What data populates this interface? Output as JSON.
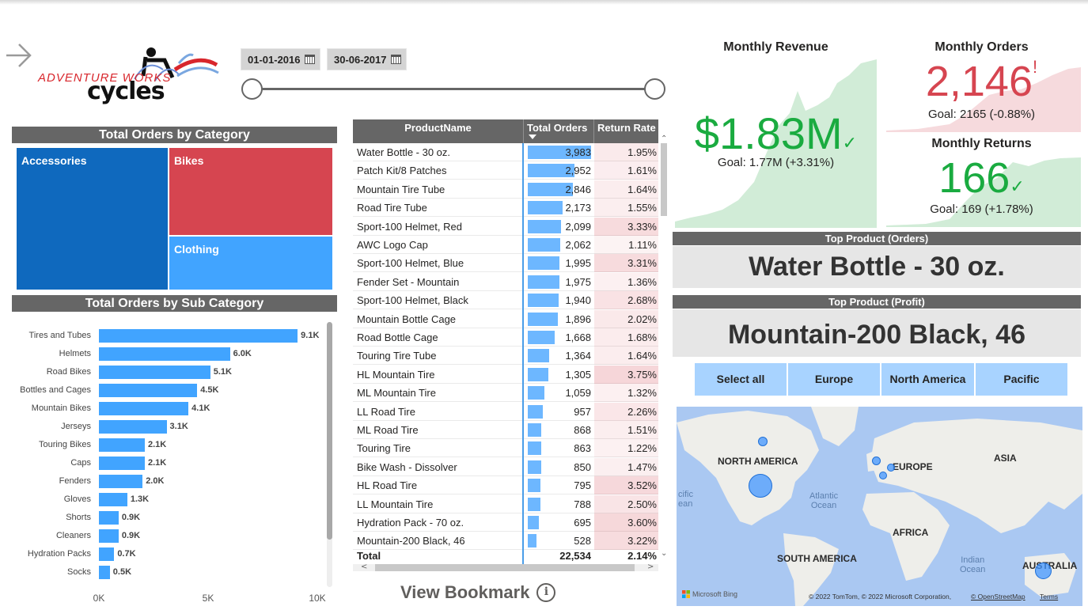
{
  "header": {
    "logo_line1": "ADVENTURE WORKS",
    "logo_line2": "cycles",
    "date_start": "01-01-2016",
    "date_end": "30-06-2017",
    "date_range_fraction": [
      0,
      1
    ]
  },
  "category_treemap": {
    "title": "Total Orders by Category",
    "items": [
      {
        "label": "Accessories",
        "color": "#0f69be"
      },
      {
        "label": "Bikes",
        "color": "#d64550"
      },
      {
        "label": "Clothing",
        "color": "#41a4ff"
      }
    ]
  },
  "chart_data": {
    "type": "bar",
    "orientation": "horizontal",
    "title": "Total Orders by Sub Category",
    "categories": [
      "Tires and Tubes",
      "Helmets",
      "Road Bikes",
      "Bottles and Cages",
      "Mountain Bikes",
      "Jerseys",
      "Touring Bikes",
      "Caps",
      "Fenders",
      "Gloves",
      "Shorts",
      "Cleaners",
      "Hydration Packs",
      "Socks"
    ],
    "values": [
      9100,
      6000,
      5100,
      4500,
      4100,
      3100,
      2100,
      2100,
      2000,
      1300,
      900,
      900,
      700,
      500
    ],
    "data_labels": [
      "9.1K",
      "6.0K",
      "5.1K",
      "4.5K",
      "4.1K",
      "3.1K",
      "2.1K",
      "2.1K",
      "2.0K",
      "1.3K",
      "0.9K",
      "0.9K",
      "0.7K",
      "0.5K"
    ],
    "xlim": [
      0,
      10000
    ],
    "x_ticks": [
      "0K",
      "5K",
      "10K"
    ],
    "xlabel": "",
    "ylabel": "",
    "color": "#41a4ff",
    "grid": false
  },
  "product_table": {
    "columns": [
      "ProductName",
      "Total Orders",
      "Return Rate"
    ],
    "sorted_by": "Total Orders",
    "max_orders": 3983,
    "rows": [
      {
        "name": "Water Bottle - 30 oz.",
        "orders": "3,983",
        "orders_value": 3983,
        "return_rate": "1.95%",
        "rr_value": 1.95
      },
      {
        "name": "Patch Kit/8 Patches",
        "orders": "2,952",
        "orders_value": 2952,
        "return_rate": "1.61%",
        "rr_value": 1.61
      },
      {
        "name": "Mountain Tire Tube",
        "orders": "2,846",
        "orders_value": 2846,
        "return_rate": "1.64%",
        "rr_value": 1.64
      },
      {
        "name": "Road Tire Tube",
        "orders": "2,173",
        "orders_value": 2173,
        "return_rate": "1.55%",
        "rr_value": 1.55
      },
      {
        "name": "Sport-100 Helmet, Red",
        "orders": "2,099",
        "orders_value": 2099,
        "return_rate": "3.33%",
        "rr_value": 3.33
      },
      {
        "name": "AWC Logo Cap",
        "orders": "2,062",
        "orders_value": 2062,
        "return_rate": "1.11%",
        "rr_value": 1.11
      },
      {
        "name": "Sport-100 Helmet, Blue",
        "orders": "1,995",
        "orders_value": 1995,
        "return_rate": "3.31%",
        "rr_value": 3.31
      },
      {
        "name": "Fender Set - Mountain",
        "orders": "1,975",
        "orders_value": 1975,
        "return_rate": "1.36%",
        "rr_value": 1.36
      },
      {
        "name": "Sport-100 Helmet, Black",
        "orders": "1,940",
        "orders_value": 1940,
        "return_rate": "2.68%",
        "rr_value": 2.68
      },
      {
        "name": "Mountain Bottle Cage",
        "orders": "1,896",
        "orders_value": 1896,
        "return_rate": "2.02%",
        "rr_value": 2.02
      },
      {
        "name": "Road Bottle Cage",
        "orders": "1,668",
        "orders_value": 1668,
        "return_rate": "1.68%",
        "rr_value": 1.68
      },
      {
        "name": "Touring Tire Tube",
        "orders": "1,364",
        "orders_value": 1364,
        "return_rate": "1.64%",
        "rr_value": 1.64
      },
      {
        "name": "HL Mountain Tire",
        "orders": "1,305",
        "orders_value": 1305,
        "return_rate": "3.75%",
        "rr_value": 3.75
      },
      {
        "name": "ML Mountain Tire",
        "orders": "1,059",
        "orders_value": 1059,
        "return_rate": "1.32%",
        "rr_value": 1.32
      },
      {
        "name": "LL Road Tire",
        "orders": "957",
        "orders_value": 957,
        "return_rate": "2.26%",
        "rr_value": 2.26
      },
      {
        "name": "ML Road Tire",
        "orders": "868",
        "orders_value": 868,
        "return_rate": "1.51%",
        "rr_value": 1.51
      },
      {
        "name": "Touring Tire",
        "orders": "863",
        "orders_value": 863,
        "return_rate": "1.22%",
        "rr_value": 1.22
      },
      {
        "name": "Bike Wash - Dissolver",
        "orders": "850",
        "orders_value": 850,
        "return_rate": "1.47%",
        "rr_value": 1.47
      },
      {
        "name": "HL Road Tire",
        "orders": "795",
        "orders_value": 795,
        "return_rate": "3.52%",
        "rr_value": 3.52
      },
      {
        "name": "LL Mountain Tire",
        "orders": "788",
        "orders_value": 788,
        "return_rate": "2.50%",
        "rr_value": 2.5
      },
      {
        "name": "Hydration Pack - 70 oz.",
        "orders": "695",
        "orders_value": 695,
        "return_rate": "3.60%",
        "rr_value": 3.6
      },
      {
        "name": "Mountain-200 Black, 46",
        "orders": "528",
        "orders_value": 528,
        "return_rate": "3.22%",
        "rr_value": 3.22
      }
    ],
    "total": {
      "label": "Total",
      "orders": "22,534",
      "return_rate": "2.14%"
    }
  },
  "bookmark": {
    "label": "View Bookmark",
    "icon": "info-icon"
  },
  "kpis": {
    "revenue": {
      "title": "Monthly Revenue",
      "value": "$1.83M",
      "status_icon": "✓",
      "goal": "Goal: 1.77M (+3.31%)",
      "color": "#1aab40",
      "area_color": "#d1ecd7"
    },
    "orders": {
      "title": "Monthly Orders",
      "value": "2,146",
      "status_icon": "!",
      "goal": "Goal: 2165 (-0.88%)",
      "color": "#d64550",
      "area_color": "#f6dadd"
    },
    "returns": {
      "title": "Monthly Returns",
      "value": "166",
      "status_icon": "✓",
      "goal": "Goal: 169 (+1.78%)",
      "color": "#1aab40",
      "area_color": "#d1ecd7"
    }
  },
  "top_products": {
    "orders": {
      "title": "Top Product (Orders)",
      "value": "Water Bottle - 30 oz."
    },
    "profit": {
      "title": "Top Product (Profit)",
      "value": "Mountain-200 Black, 46"
    }
  },
  "region_slicer": [
    "Select all",
    "Europe",
    "North America",
    "Pacific"
  ],
  "map": {
    "continents": [
      "NORTH AMERICA",
      "EUROPE",
      "ASIA",
      "AFRICA",
      "SOUTH AMERICA",
      "AUSTRALIA"
    ],
    "oceans": [
      "Atlantic\nOcean",
      "Indian\nOcean",
      "cific\nean"
    ],
    "brand": "Microsoft Bing",
    "credit": "© 2022 TomTom, © 2022 Microsoft Corporation,",
    "osm": "© OpenStreetMap",
    "terms": "Terms"
  }
}
